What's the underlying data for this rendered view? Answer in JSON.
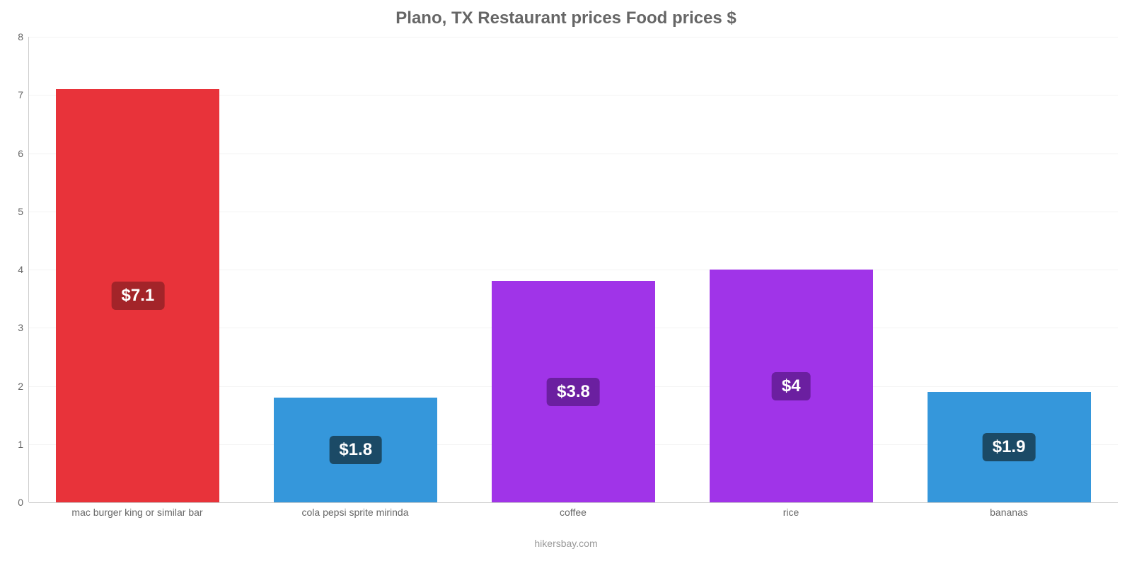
{
  "chart": {
    "type": "bar",
    "title": "Plano, TX Restaurant prices Food prices $",
    "title_fontsize": 24,
    "title_color": "#666666",
    "background_color": "#ffffff",
    "grid_color": "#f3f3f3",
    "axis_line_color": "#cccccc",
    "tick_label_color": "#666666",
    "tick_fontsize": 14,
    "ylim": [
      0,
      8
    ],
    "ytick_step": 1,
    "yticks": [
      0,
      1,
      2,
      3,
      4,
      5,
      6,
      7,
      8
    ],
    "bar_width_pct": 75,
    "value_label_fontsize": 24,
    "categories": [
      "mac burger king or similar bar",
      "cola pepsi sprite mirinda",
      "coffee",
      "rice",
      "bananas"
    ],
    "values": [
      7.1,
      1.8,
      3.8,
      4.0,
      1.9
    ],
    "value_labels": [
      "$7.1",
      "$1.8",
      "$3.8",
      "$4",
      "$1.9"
    ],
    "bar_colors": [
      "#e8333a",
      "#3597db",
      "#a034e8",
      "#a034e8",
      "#3597db"
    ],
    "label_bg_colors": [
      "#a32429",
      "#1b4a66",
      "#6b1fa0",
      "#6b1fa0",
      "#1b4a66"
    ],
    "footer": "hikersbay.com",
    "footer_color": "#999999",
    "footer_fontsize": 14
  }
}
